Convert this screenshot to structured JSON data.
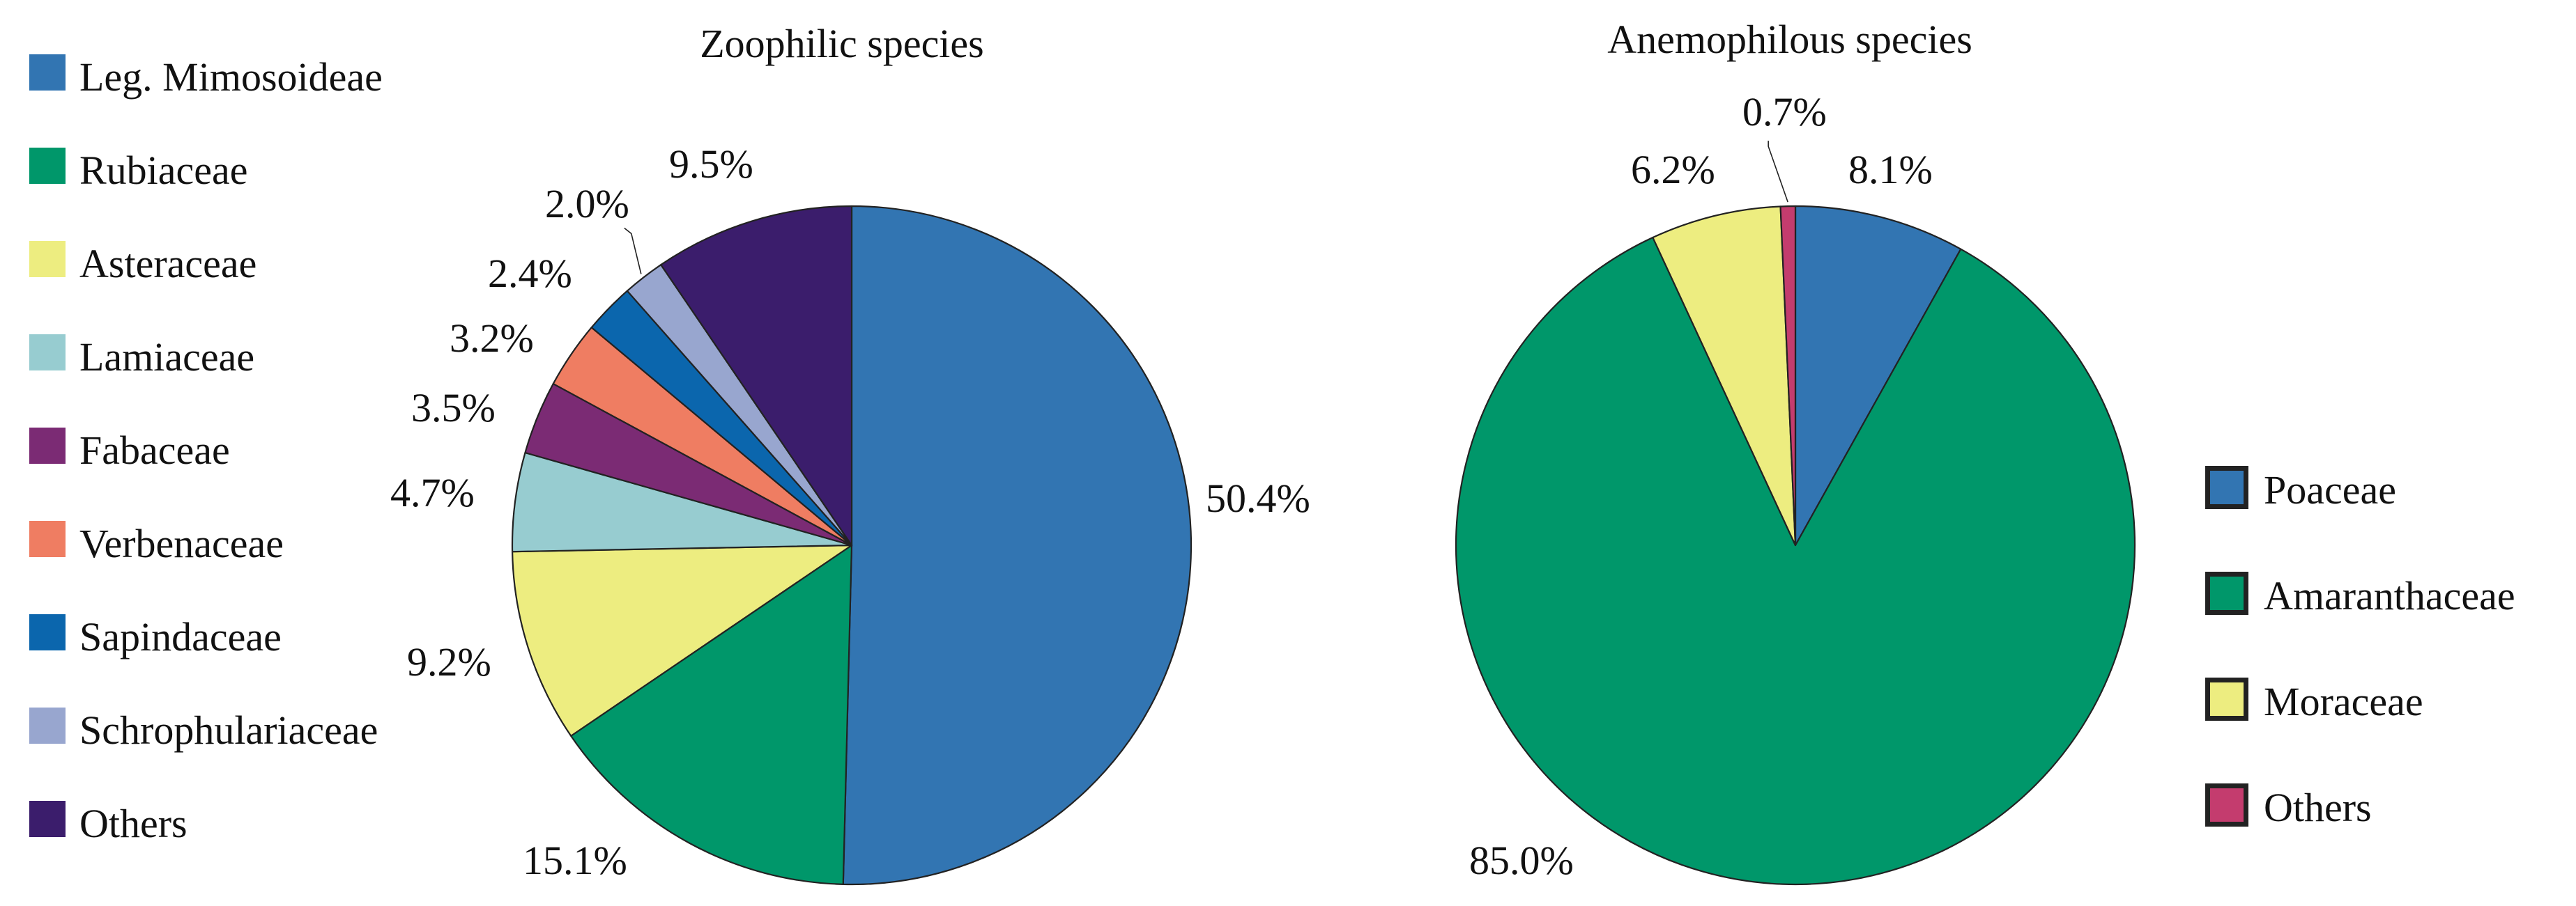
{
  "chart_data": [
    {
      "type": "pie",
      "title": "Zoophilic species",
      "legend_position": "left",
      "categories": [
        "Leg. Mimosoideae",
        "Rubiaceae",
        "Asteraceae",
        "Lamiaceae",
        "Fabaceae",
        "Verbenaceae",
        "Sapindaceae",
        "Schrophulariaceae",
        "Others"
      ],
      "values": [
        50.4,
        15.1,
        9.2,
        4.7,
        3.5,
        3.2,
        2.4,
        2.0,
        9.5
      ],
      "labels": [
        "50.4%",
        "15.1%",
        "9.2%",
        "4.7%",
        "3.5%",
        "3.2%",
        "2.4%",
        "2.0%",
        "9.5%"
      ],
      "colors": [
        "#3275b2",
        "#00976a",
        "#eded80",
        "#97ccd0",
        "#7b2b74",
        "#ef7d62",
        "#0b66ad",
        "#98a6cf",
        "#3b1d6c"
      ]
    },
    {
      "type": "pie",
      "title": "Anemophilous species",
      "legend_position": "right",
      "categories": [
        "Poaceae",
        "Amaranthaceae",
        "Moraceae",
        "Others"
      ],
      "values": [
        8.1,
        85.0,
        6.2,
        0.7
      ],
      "labels": [
        "8.1%",
        "85.0%",
        "6.2%",
        "0.7%"
      ],
      "colors": [
        "#3275b2",
        "#00976a",
        "#eded80",
        "#c43c6e"
      ]
    }
  ]
}
